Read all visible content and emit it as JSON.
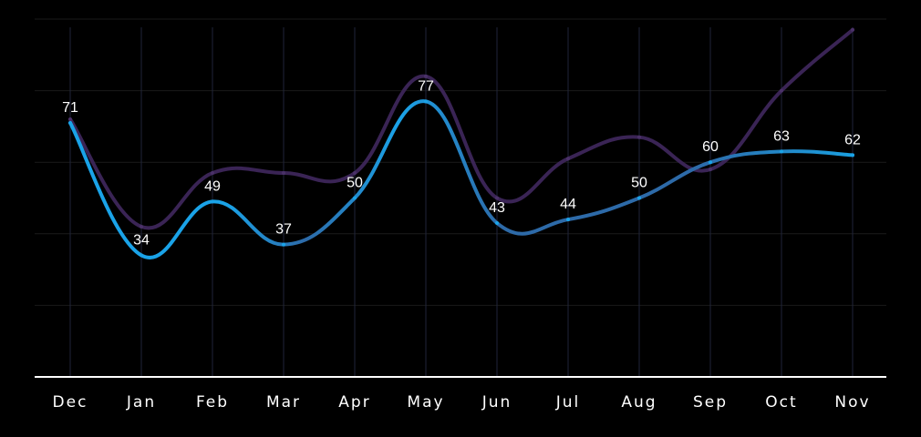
{
  "colors": {
    "background": "#000000",
    "primary_line_start": "#1a9fe0",
    "primary_line_mid": "#2b6aa6",
    "secondary_line": "#3a2455",
    "gridline": "#1a1a1a",
    "drop_line": "#20253a",
    "baseline": "#ffffff",
    "text": "#ffffff"
  },
  "chart_data": {
    "type": "line",
    "title": "",
    "xlabel": "",
    "ylabel": "",
    "categories": [
      "Dec",
      "Jan",
      "Feb",
      "Mar",
      "Apr",
      "May",
      "Jun",
      "Jul",
      "Aug",
      "Sep",
      "Oct",
      "Nov"
    ],
    "ylim": [
      0,
      100
    ],
    "grid": true,
    "legend": "none",
    "series": [
      {
        "values": [
          71,
          34,
          49,
          37,
          50,
          77,
          43,
          44,
          50,
          60,
          63,
          62
        ],
        "data_labels": [
          "71",
          "34",
          "49",
          "37",
          "50",
          "77",
          "43",
          "44",
          "50",
          "60",
          "63",
          "62"
        ]
      },
      {
        "values": [
          72,
          42,
          57,
          57,
          57,
          84,
          50,
          61,
          67,
          58,
          80,
          97
        ]
      }
    ]
  }
}
